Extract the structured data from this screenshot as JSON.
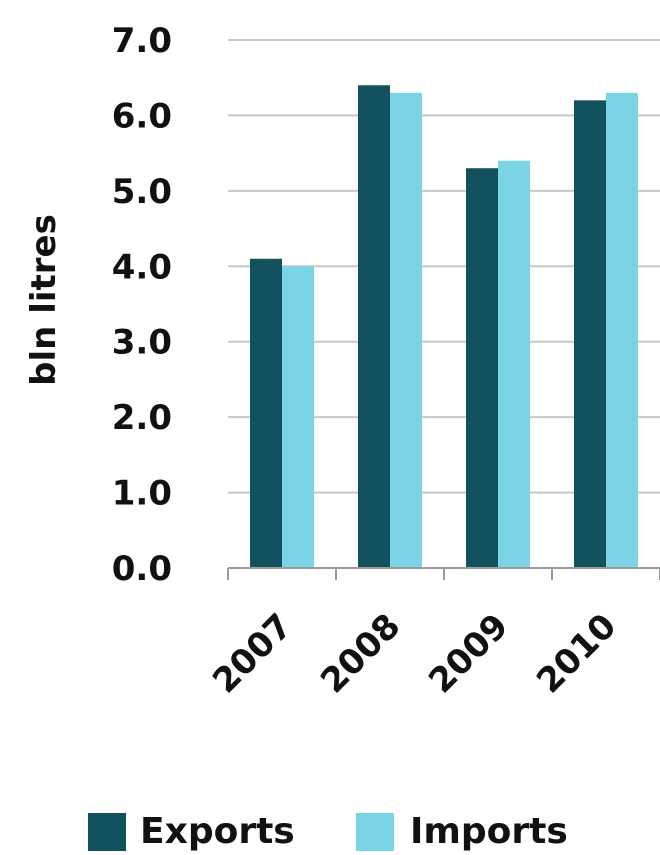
{
  "chart_data": {
    "type": "bar",
    "title": "",
    "xlabel": "",
    "ylabel": "bln litres",
    "categories": [
      "2007",
      "2008",
      "2009",
      "2010"
    ],
    "series": [
      {
        "name": "Exports",
        "color": "#12525e",
        "values": [
          4.1,
          6.4,
          5.3,
          6.2
        ]
      },
      {
        "name": "Imports",
        "color": "#7ad4e6",
        "values": [
          4.0,
          6.3,
          5.4,
          6.3
        ]
      }
    ],
    "ylim": [
      0,
      7
    ],
    "yticks": [
      "0.0",
      "1.0",
      "2.0",
      "3.0",
      "4.0",
      "5.0",
      "6.0",
      "7.0"
    ],
    "grid": true,
    "legend": "bottom"
  }
}
